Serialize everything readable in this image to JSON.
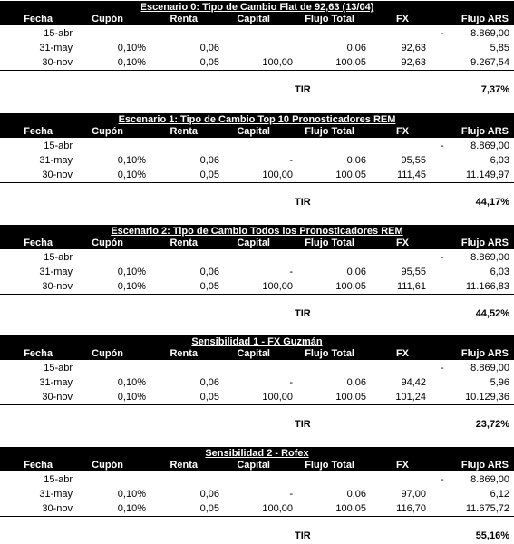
{
  "headers": {
    "fecha": "Fecha",
    "cupon": "Cupón",
    "renta": "Renta",
    "capital": "Capital",
    "flujo_total": "Flujo Total",
    "fx": "FX",
    "flujo_ars": "Flujo ARS"
  },
  "tir_label": "TIR",
  "scenarios": [
    {
      "title": "Escenario 0: Tipo de Cambio Flat de 92,63 (13/04)",
      "tir": "7,37%",
      "rows": [
        {
          "fecha": "15-abr",
          "cupon": "",
          "renta": "",
          "capital": "",
          "flujo_total": "",
          "fx": "",
          "dash": "-",
          "flujo_ars": "8.869,00"
        },
        {
          "fecha": "31-may",
          "cupon": "0,10%",
          "renta": "0,06",
          "capital": "",
          "flujo_total": "0,06",
          "fx": "92,63",
          "dash": "",
          "flujo_ars": "5,85"
        },
        {
          "fecha": "30-nov",
          "cupon": "0,10%",
          "renta": "0,05",
          "capital": "100,00",
          "flujo_total": "100,05",
          "fx": "92,63",
          "dash": "",
          "flujo_ars": "9.267,54"
        }
      ]
    },
    {
      "title": "Escenario 1: Tipo de Cambio Top 10 Pronosticadores REM",
      "tir": "44,17%",
      "rows": [
        {
          "fecha": "15-abr",
          "cupon": "",
          "renta": "",
          "capital": "",
          "flujo_total": "",
          "fx": "",
          "dash": "-",
          "flujo_ars": "8.869,00"
        },
        {
          "fecha": "31-may",
          "cupon": "0,10%",
          "renta": "0,06",
          "capital": "-",
          "flujo_total": "0,06",
          "fx": "95,55",
          "dash": "",
          "flujo_ars": "6,03"
        },
        {
          "fecha": "30-nov",
          "cupon": "0,10%",
          "renta": "0,05",
          "capital": "100,00",
          "flujo_total": "100,05",
          "fx": "111,45",
          "dash": "",
          "flujo_ars": "11.149,97"
        }
      ]
    },
    {
      "title": "Escenario 2: Tipo de Cambio Todos los Pronosticadores REM",
      "tir": "44,52%",
      "rows": [
        {
          "fecha": "15-abr",
          "cupon": "",
          "renta": "",
          "capital": "",
          "flujo_total": "",
          "fx": "",
          "dash": "-",
          "flujo_ars": "8.869,00"
        },
        {
          "fecha": "31-may",
          "cupon": "0,10%",
          "renta": "0,06",
          "capital": "-",
          "flujo_total": "0,06",
          "fx": "95,55",
          "dash": "",
          "flujo_ars": "6,03"
        },
        {
          "fecha": "30-nov",
          "cupon": "0,10%",
          "renta": "0,05",
          "capital": "100,00",
          "flujo_total": "100,05",
          "fx": "111,61",
          "dash": "",
          "flujo_ars": "11.166,83"
        }
      ]
    },
    {
      "title": "Sensibilidad 1 - FX Guzmán",
      "tir": "23,72%",
      "rows": [
        {
          "fecha": "15-abr",
          "cupon": "",
          "renta": "",
          "capital": "",
          "flujo_total": "",
          "fx": "",
          "dash": "-",
          "flujo_ars": "8.869,00"
        },
        {
          "fecha": "31-may",
          "cupon": "0,10%",
          "renta": "0,06",
          "capital": "-",
          "flujo_total": "0,06",
          "fx": "94,42",
          "dash": "",
          "flujo_ars": "5,96"
        },
        {
          "fecha": "30-nov",
          "cupon": "0,10%",
          "renta": "0,05",
          "capital": "100,00",
          "flujo_total": "100,05",
          "fx": "101,24",
          "dash": "",
          "flujo_ars": "10.129,36"
        }
      ]
    },
    {
      "title": "Sensibilidad 2 - Rofex",
      "tir": "55,16%",
      "rows": [
        {
          "fecha": "15-abr",
          "cupon": "",
          "renta": "",
          "capital": "",
          "flujo_total": "",
          "fx": "",
          "dash": "-",
          "flujo_ars": "8.869,00"
        },
        {
          "fecha": "31-may",
          "cupon": "0,10%",
          "renta": "0,06",
          "capital": "-",
          "flujo_total": "0,06",
          "fx": "97,00",
          "dash": "",
          "flujo_ars": "6,12"
        },
        {
          "fecha": "30-nov",
          "cupon": "0,10%",
          "renta": "0,05",
          "capital": "100,00",
          "flujo_total": "100,05",
          "fx": "116,70",
          "dash": "",
          "flujo_ars": "11.675,72"
        }
      ]
    }
  ]
}
